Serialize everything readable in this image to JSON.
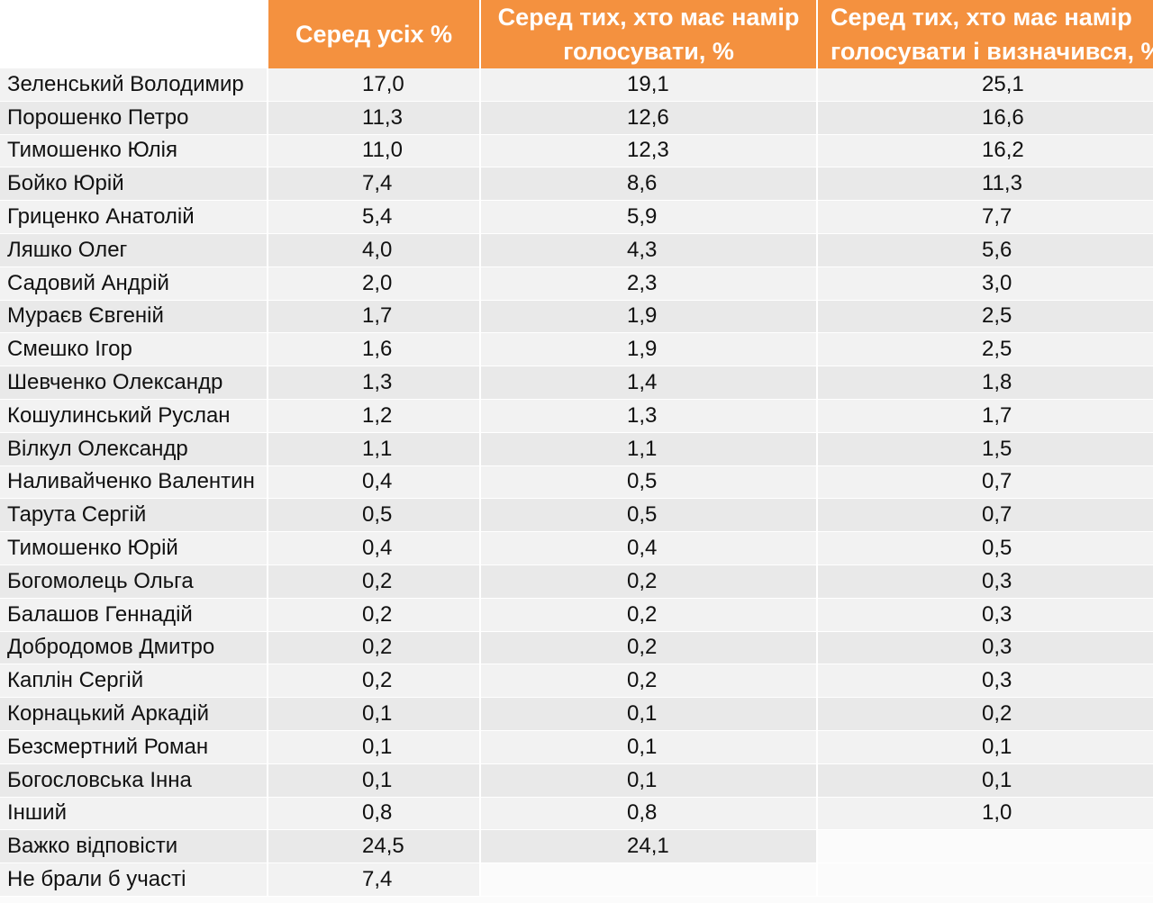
{
  "table": {
    "headers": [
      "",
      "Серед усіх %",
      "Серед тих, хто має намір\nголосувати, %",
      "Серед тих, хто має намір\nголосувати і визначився, %"
    ],
    "rows": [
      {
        "name": "Зеленський Володимир",
        "all": "17,0",
        "intend": "19,1",
        "decided": "25,1"
      },
      {
        "name": "Порошенко Петро",
        "all": "11,3",
        "intend": "12,6",
        "decided": "16,6"
      },
      {
        "name": "Тимошенко Юлія",
        "all": "11,0",
        "intend": "12,3",
        "decided": "16,2"
      },
      {
        "name": "Бойко Юрій",
        "all": "7,4",
        "intend": "8,6",
        "decided": "11,3"
      },
      {
        "name": "Гриценко Анатолій",
        "all": "5,4",
        "intend": "5,9",
        "decided": "7,7"
      },
      {
        "name": "Ляшко Олег",
        "all": "4,0",
        "intend": "4,3",
        "decided": "5,6"
      },
      {
        "name": "Садовий Андрій",
        "all": "2,0",
        "intend": "2,3",
        "decided": "3,0"
      },
      {
        "name": "Мураєв Євгеній",
        "all": "1,7",
        "intend": "1,9",
        "decided": "2,5"
      },
      {
        "name": "Смешко Ігор",
        "all": "1,6",
        "intend": "1,9",
        "decided": "2,5"
      },
      {
        "name": "Шевченко Олександр",
        "all": "1,3",
        "intend": "1,4",
        "decided": "1,8"
      },
      {
        "name": "Кошулинський Руслан",
        "all": "1,2",
        "intend": "1,3",
        "decided": "1,7"
      },
      {
        "name": "Вілкул Олександр",
        "all": "1,1",
        "intend": "1,1",
        "decided": "1,5"
      },
      {
        "name": "Наливайченко Валентин",
        "all": "0,4",
        "intend": "0,5",
        "decided": "0,7"
      },
      {
        "name": "Тарута Сергій",
        "all": "0,5",
        "intend": "0,5",
        "decided": "0,7"
      },
      {
        "name": "Тимошенко Юрій",
        "all": "0,4",
        "intend": "0,4",
        "decided": "0,5"
      },
      {
        "name": "Богомолець Ольга",
        "all": "0,2",
        "intend": "0,2",
        "decided": "0,3"
      },
      {
        "name": "Балашов Геннадій",
        "all": "0,2",
        "intend": "0,2",
        "decided": "0,3"
      },
      {
        "name": "Добродомов Дмитро",
        "all": "0,2",
        "intend": "0,2",
        "decided": "0,3"
      },
      {
        "name": "Каплін Сергій",
        "all": "0,2",
        "intend": "0,2",
        "decided": "0,3"
      },
      {
        "name": "Корнацький Аркадій",
        "all": "0,1",
        "intend": "0,1",
        "decided": "0,2"
      },
      {
        "name": "Безсмертний Роман",
        "all": "0,1",
        "intend": "0,1",
        "decided": "0,1"
      },
      {
        "name": "Богословська Інна",
        "all": "0,1",
        "intend": "0,1",
        "decided": "0,1"
      },
      {
        "name": "Інший",
        "all": "0,8",
        "intend": "0,8",
        "decided": "1,0"
      },
      {
        "name": "Важко відповісти",
        "all": "24,5",
        "intend": "24,1",
        "decided": ""
      },
      {
        "name": "Не брали б участі",
        "all": "7,4",
        "intend": "",
        "decided": ""
      }
    ]
  },
  "colors": {
    "header_orange": "#f4913f",
    "row_light": "#f2f2f2",
    "row_dark": "#e9e9e9"
  }
}
